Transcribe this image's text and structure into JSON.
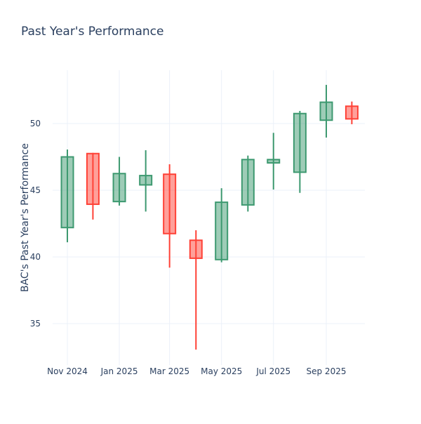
{
  "chart_data": {
    "type": "candlestick",
    "title": "Past Year's Performance",
    "xlabel": "",
    "ylabel": "BAC's Past Year's Performance",
    "ylim": [
      32,
      54
    ],
    "yticks": [
      35,
      40,
      45,
      50
    ],
    "xticks": [
      {
        "date": "2024-11-01",
        "label": "Nov 2024"
      },
      {
        "date": "2025-01-01",
        "label": "Jan 2025"
      },
      {
        "date": "2025-03-01",
        "label": "Mar 2025"
      },
      {
        "date": "2025-05-01",
        "label": "May 2025"
      },
      {
        "date": "2025-07-01",
        "label": "Jul 2025"
      },
      {
        "date": "2025-09-01",
        "label": "Sep 2025"
      }
    ],
    "grid": true,
    "increasing_color": "#3d9970",
    "decreasing_color": "#ff4136",
    "candles": [
      {
        "date": "2024-11-01",
        "open": 42.2,
        "high": 48.05,
        "low": 41.1,
        "close": 47.5
      },
      {
        "date": "2024-12-01",
        "open": 47.75,
        "high": 47.8,
        "low": 42.8,
        "close": 43.95
      },
      {
        "date": "2025-01-01",
        "open": 44.15,
        "high": 47.5,
        "low": 43.85,
        "close": 46.25
      },
      {
        "date": "2025-02-01",
        "open": 45.4,
        "high": 48.0,
        "low": 43.4,
        "close": 46.1
      },
      {
        "date": "2025-03-01",
        "open": 46.2,
        "high": 46.95,
        "low": 39.2,
        "close": 41.75
      },
      {
        "date": "2025-04-01",
        "open": 41.25,
        "high": 42.0,
        "low": 33.05,
        "close": 39.9
      },
      {
        "date": "2025-05-01",
        "open": 39.8,
        "high": 45.15,
        "low": 39.6,
        "close": 44.1
      },
      {
        "date": "2025-06-01",
        "open": 43.9,
        "high": 47.6,
        "low": 43.4,
        "close": 47.3
      },
      {
        "date": "2025-07-01",
        "open": 47.05,
        "high": 49.3,
        "low": 45.05,
        "close": 47.3
      },
      {
        "date": "2025-08-01",
        "open": 46.35,
        "high": 50.95,
        "low": 44.8,
        "close": 50.75
      },
      {
        "date": "2025-09-01",
        "open": 50.25,
        "high": 52.9,
        "low": 48.95,
        "close": 51.6
      },
      {
        "date": "2025-10-01",
        "open": 51.3,
        "high": 51.65,
        "low": 49.95,
        "close": 50.35
      }
    ]
  }
}
